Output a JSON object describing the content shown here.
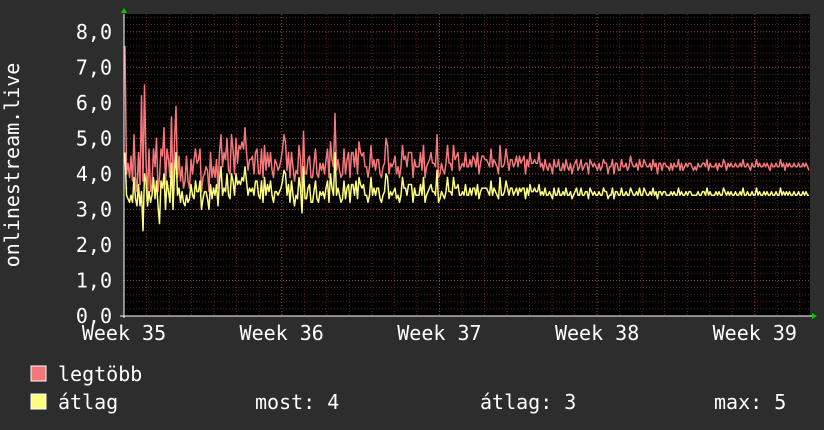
{
  "chart_data": {
    "type": "line",
    "ylabel": "onlinestream.live",
    "ylim": [
      0,
      8.5
    ],
    "y_ticks": [
      "0,0",
      "1,0",
      "2,0",
      "3,0",
      "4,0",
      "5,0",
      "6,0",
      "7,0",
      "8,0"
    ],
    "x_range": [
      "Week 35",
      "Week 39+"
    ],
    "x_ticks": [
      {
        "label": "Week 35",
        "pos": 0.0
      },
      {
        "label": "Week 36",
        "pos": 1.0
      },
      {
        "label": "Week 37",
        "pos": 2.0
      },
      {
        "label": "Week 38",
        "pos": 3.0
      },
      {
        "label": "Week 39",
        "pos": 4.0
      }
    ],
    "x_max": 4.35,
    "grid": true,
    "background": "#000000",
    "series": [
      {
        "name": "legtöbb",
        "color": "#f5777a",
        "values": [
          7.6,
          4.0,
          4.3,
          3.9,
          4.5,
          3.8,
          5.1,
          3.9,
          3.5,
          4.6,
          3.7,
          6.2,
          3.8,
          6.5,
          4.4,
          3.3,
          4.7,
          3.5,
          3.7,
          4.7,
          4.2,
          5.0,
          3.5,
          3.9,
          4.7,
          4.5,
          5.3,
          3.7,
          4.7,
          4.4,
          3.9,
          5.6,
          3.4,
          4.9,
          5.9,
          3.9,
          4.5,
          3.8,
          4.2,
          3.6,
          3.8,
          4.5,
          3.8,
          3.6,
          4.4,
          4.0,
          4.4,
          4.7,
          4.3,
          4.4,
          4.7,
          3.5,
          3.9,
          4.0,
          4.2,
          4.1,
          3.5,
          4.6,
          3.9,
          4.2,
          3.9,
          4.4,
          3.6,
          4.6,
          5.1,
          4.2,
          4.6,
          4.4,
          5.0,
          4.1,
          4.0,
          5.1,
          4.7,
          4.0,
          5.0,
          4.3,
          4.8,
          4.7,
          4.9,
          4.7,
          5.3,
          4.6,
          4.1,
          4.4,
          4.4,
          4.5,
          4.0,
          4.6,
          4.7,
          4.0,
          4.0,
          4.7,
          3.9,
          4.8,
          4.1,
          4.6,
          4.2,
          4.6,
          4.1,
          3.9,
          4.4,
          4.3,
          4.1,
          4.2,
          4.4,
          4.7,
          5.1,
          4.9,
          4.1,
          4.6,
          3.9,
          4.6,
          4.2,
          3.8,
          4.1,
          4.0,
          4.8,
          4.4,
          3.5,
          5.2,
          4.0,
          4.0,
          4.4,
          4.5,
          3.9,
          3.9,
          4.3,
          4.7,
          4.0,
          3.9,
          4.3,
          4.1,
          4.3,
          4.0,
          4.4,
          4.7,
          3.9,
          4.9,
          4.4,
          4.2,
          5.7,
          4.1,
          4.4,
          4.1,
          3.9,
          4.0,
          4.7,
          4.0,
          4.4,
          4.6,
          3.9,
          4.6,
          4.6,
          4.2,
          4.7,
          4.0,
          4.9,
          4.6,
          4.5,
          4.6,
          4.2,
          4.2,
          3.9,
          4.2,
          4.8,
          4.2,
          4.4,
          4.1,
          4.4,
          4.4,
          4.0,
          3.9,
          4.2,
          4.3,
          5.0,
          4.8,
          4.0,
          4.3,
          4.2,
          4.3,
          4.5,
          4.0,
          4.2,
          3.9,
          4.2,
          4.8,
          4.4,
          4.5,
          4.2,
          4.6,
          4.6,
          4.6,
          3.9,
          4.4,
          4.2,
          4.2,
          4.2,
          4.6,
          4.1,
          4.8,
          3.9,
          4.2,
          4.3,
          4.4,
          4.6,
          4.3,
          4.3,
          4.2,
          5.1,
          3.9,
          4.0,
          4.3,
          4.1,
          4.0,
          4.3,
          4.8,
          4.3,
          4.3,
          4.1,
          4.8,
          4.4,
          4.5,
          4.6,
          4.1,
          4.2,
          4.3,
          4.2,
          4.6,
          4.2,
          4.2,
          4.4,
          4.2,
          4.5,
          4.4,
          4.2,
          4.6,
          4.0,
          4.3,
          4.5,
          4.5,
          4.4,
          4.4,
          4.3,
          4.2,
          4.7,
          4.2,
          4.4,
          4.3,
          4.2,
          4.0,
          4.8,
          4.2,
          4.2,
          4.3,
          4.7,
          4.4,
          4.1,
          4.4,
          4.4,
          4.2,
          4.3,
          4.5,
          4.2,
          4.5,
          4.3,
          4.4,
          4.5,
          4.0,
          4.4,
          4.2,
          4.6,
          4.3,
          4.3,
          4.4,
          4.3,
          4.3,
          4.6,
          4.2,
          4.3,
          4.1,
          4.4,
          4.2,
          4.1,
          4.3,
          4.2,
          4.0,
          4.4,
          4.2,
          4.2,
          4.4,
          4.1,
          4.1,
          4.3,
          4.1,
          4.4,
          4.2,
          4.1,
          4.3,
          4.0,
          4.2,
          4.3,
          4.4,
          4.1,
          4.2,
          4.4,
          4.1,
          4.2,
          4.3,
          4.3,
          4.0,
          4.4,
          4.3,
          4.2,
          4.3,
          4.2,
          4.1,
          4.3,
          4.1,
          4.2,
          4.4,
          4.3,
          4.3,
          4.0,
          4.2,
          4.2,
          4.4,
          4.0,
          4.3,
          4.3,
          4.1,
          4.1,
          4.4,
          4.2,
          4.2,
          4.3,
          4.1,
          4.2,
          4.5,
          4.3,
          4.2,
          4.2,
          4.3,
          4.1,
          4.4,
          4.2,
          4.2,
          4.4,
          4.3,
          4.2,
          4.2,
          4.3,
          4.1,
          4.4,
          4.2,
          4.3,
          4.0,
          4.3,
          4.3,
          4.1,
          4.3,
          4.3,
          4.2,
          4.2,
          4.1,
          4.3,
          4.1,
          4.3,
          4.2,
          4.2,
          4.4,
          4.1,
          4.3,
          4.1,
          4.2,
          4.3,
          4.2,
          4.3,
          4.3,
          4.2,
          4.1,
          4.2,
          4.1,
          4.3,
          4.2,
          4.2,
          4.3,
          4.3,
          4.2,
          4.4,
          4.1,
          4.3,
          4.2,
          4.2,
          4.2,
          4.3,
          4.1,
          4.3,
          4.2,
          4.2,
          4.4,
          4.3,
          4.1,
          4.3,
          4.2,
          4.3,
          4.2,
          4.2,
          4.3,
          4.2,
          4.2,
          4.3,
          4.2,
          4.4,
          4.2,
          4.2,
          4.3,
          4.2,
          4.1,
          4.3,
          4.2,
          4.2,
          4.4,
          4.2,
          4.3,
          4.2,
          4.2,
          4.3,
          4.2,
          4.3,
          4.2,
          4.1,
          4.3,
          4.2,
          4.2,
          4.3,
          4.2,
          4.2,
          4.4,
          4.2,
          4.3,
          4.1,
          4.3,
          4.2,
          4.3,
          4.2,
          4.2,
          4.3,
          4.2,
          4.2,
          4.3,
          4.2,
          4.2,
          4.3,
          4.2,
          4.3,
          4.2,
          4.1
        ]
      },
      {
        "name": "átlag",
        "color": "#fdfd7f",
        "values": [
          4.6,
          3.4,
          3.3,
          3.2,
          3.4,
          3.2,
          3.9,
          3.3,
          3.1,
          3.7,
          3.1,
          3.5,
          2.4,
          4.0,
          3.8,
          3.1,
          3.5,
          3.2,
          3.4,
          3.9,
          3.3,
          3.8,
          3.1,
          2.6,
          3.8,
          3.6,
          4.0,
          3.0,
          3.8,
          3.5,
          3.2,
          4.3,
          3.0,
          4.0,
          4.6,
          3.4,
          3.6,
          3.2,
          3.5,
          3.2,
          3.1,
          3.4,
          3.2,
          3.3,
          3.7,
          3.4,
          3.3,
          3.8,
          3.5,
          3.5,
          3.8,
          3.0,
          3.3,
          3.5,
          3.5,
          3.3,
          3.0,
          3.7,
          3.3,
          3.6,
          3.4,
          3.7,
          3.1,
          3.8,
          4.2,
          3.4,
          3.6,
          3.5,
          4.0,
          3.4,
          3.3,
          4.0,
          3.8,
          3.4,
          4.0,
          3.7,
          3.8,
          3.7,
          3.9,
          3.8,
          4.2,
          3.8,
          3.4,
          3.6,
          3.5,
          3.6,
          3.4,
          3.8,
          3.8,
          3.4,
          3.3,
          3.8,
          3.2,
          3.9,
          3.4,
          3.7,
          3.5,
          3.8,
          3.4,
          3.2,
          3.5,
          3.5,
          3.4,
          3.5,
          3.6,
          3.8,
          4.1,
          4.0,
          3.4,
          3.7,
          3.2,
          3.8,
          3.4,
          3.1,
          3.4,
          3.3,
          3.9,
          3.6,
          2.9,
          4.2,
          3.3,
          3.3,
          3.6,
          3.7,
          3.2,
          3.2,
          3.5,
          3.8,
          3.3,
          3.2,
          3.5,
          3.4,
          3.5,
          3.3,
          3.6,
          3.8,
          3.2,
          4.0,
          3.6,
          3.4,
          4.6,
          3.4,
          3.6,
          3.4,
          3.2,
          3.3,
          3.8,
          3.3,
          3.6,
          3.7,
          3.2,
          3.7,
          3.7,
          3.4,
          3.8,
          3.3,
          3.9,
          3.7,
          3.6,
          3.7,
          3.4,
          3.4,
          3.2,
          3.4,
          3.9,
          3.4,
          3.6,
          3.4,
          3.6,
          3.6,
          3.3,
          3.2,
          3.4,
          3.5,
          4.0,
          3.9,
          3.3,
          3.5,
          3.4,
          3.5,
          3.6,
          3.3,
          3.4,
          3.2,
          3.4,
          3.9,
          3.6,
          3.6,
          3.4,
          3.7,
          3.7,
          3.7,
          3.2,
          3.6,
          3.4,
          3.4,
          3.4,
          3.7,
          3.4,
          3.9,
          3.2,
          3.4,
          3.5,
          3.6,
          3.7,
          3.5,
          3.5,
          3.4,
          4.1,
          3.2,
          3.3,
          3.5,
          3.4,
          3.3,
          3.5,
          3.9,
          3.5,
          3.5,
          3.4,
          3.9,
          3.6,
          3.6,
          3.7,
          3.4,
          3.4,
          3.5,
          3.4,
          3.7,
          3.4,
          3.4,
          3.6,
          3.4,
          3.6,
          3.6,
          3.4,
          3.7,
          3.3,
          3.5,
          3.6,
          3.6,
          3.6,
          3.6,
          3.5,
          3.4,
          3.8,
          3.4,
          3.6,
          3.5,
          3.4,
          3.3,
          3.9,
          3.4,
          3.4,
          3.5,
          3.8,
          3.6,
          3.4,
          3.6,
          3.6,
          3.4,
          3.5,
          3.6,
          3.4,
          3.6,
          3.5,
          3.6,
          3.6,
          3.3,
          3.6,
          3.4,
          3.7,
          3.5,
          3.5,
          3.6,
          3.5,
          3.5,
          3.7,
          3.4,
          3.5,
          3.4,
          3.6,
          3.4,
          3.4,
          3.5,
          3.4,
          3.3,
          3.6,
          3.4,
          3.4,
          3.6,
          3.4,
          3.4,
          3.5,
          3.4,
          3.6,
          3.4,
          3.4,
          3.5,
          3.3,
          3.4,
          3.5,
          3.6,
          3.4,
          3.4,
          3.6,
          3.4,
          3.4,
          3.5,
          3.5,
          3.3,
          3.6,
          3.5,
          3.4,
          3.5,
          3.4,
          3.4,
          3.5,
          3.4,
          3.4,
          3.6,
          3.5,
          3.5,
          3.3,
          3.4,
          3.4,
          3.6,
          3.3,
          3.5,
          3.5,
          3.4,
          3.4,
          3.6,
          3.4,
          3.4,
          3.5,
          3.4,
          3.4,
          3.6,
          3.5,
          3.4,
          3.4,
          3.5,
          3.4,
          3.6,
          3.4,
          3.4,
          3.6,
          3.5,
          3.4,
          3.4,
          3.5,
          3.4,
          3.6,
          3.4,
          3.5,
          3.3,
          3.5,
          3.5,
          3.4,
          3.5,
          3.5,
          3.4,
          3.4,
          3.4,
          3.5,
          3.4,
          3.5,
          3.4,
          3.4,
          3.6,
          3.4,
          3.5,
          3.4,
          3.4,
          3.5,
          3.4,
          3.5,
          3.5,
          3.4,
          3.4,
          3.4,
          3.4,
          3.5,
          3.4,
          3.4,
          3.5,
          3.5,
          3.4,
          3.6,
          3.4,
          3.5,
          3.4,
          3.4,
          3.4,
          3.5,
          3.4,
          3.5,
          3.4,
          3.4,
          3.6,
          3.5,
          3.4,
          3.5,
          3.4,
          3.5,
          3.4,
          3.4,
          3.5,
          3.4,
          3.4,
          3.5,
          3.4,
          3.6,
          3.4,
          3.4,
          3.5,
          3.4,
          3.4,
          3.5,
          3.4,
          3.4,
          3.6,
          3.4,
          3.5,
          3.4,
          3.4,
          3.5,
          3.4,
          3.5,
          3.4,
          3.4,
          3.5,
          3.4,
          3.4,
          3.5,
          3.4,
          3.4,
          3.6,
          3.4,
          3.5,
          3.4,
          3.5,
          3.4,
          3.5,
          3.4,
          3.4,
          3.5,
          3.4,
          3.4,
          3.5,
          3.4,
          3.4,
          3.5,
          3.4,
          3.5,
          3.4,
          3.4
        ]
      }
    ]
  },
  "legend": [
    {
      "name": "legtöbb",
      "color": "#f5777a"
    },
    {
      "name": "átlag",
      "color": "#fdfd7f"
    }
  ],
  "stats": {
    "most": "most: 4",
    "atlag": "átlag: 3",
    "max": "max: 5"
  }
}
